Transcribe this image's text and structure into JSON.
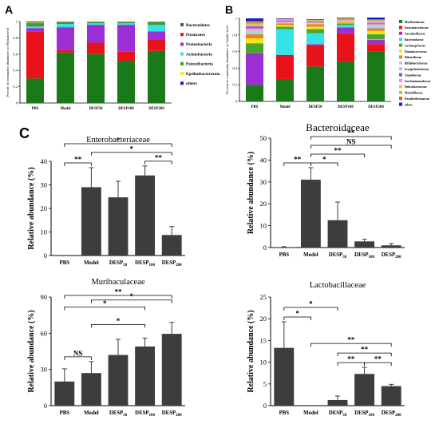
{
  "panels": {
    "a": "A",
    "b": "B",
    "c": "C"
  },
  "chart_data": [
    {
      "id": "A",
      "type": "bar",
      "stacked": true,
      "ylabel": "Percent of community abundance on Phylum level",
      "categories": [
        "PBS",
        "Model",
        "DESP50",
        "DESP100",
        "DESP200"
      ],
      "ylim": [
        0,
        1
      ],
      "yticks": [
        "0",
        "0.2",
        "0.4",
        "0.6",
        "0.8",
        "1"
      ],
      "legend_position": "right",
      "series": [
        {
          "name": "Bacteroidetes",
          "color": "#1a7a1a",
          "values": [
            0.3,
            0.62,
            0.6,
            0.52,
            0.64
          ]
        },
        {
          "name": "Firmicutes",
          "color": "#e8131a",
          "values": [
            0.58,
            0.03,
            0.14,
            0.11,
            0.14
          ]
        },
        {
          "name": "Proteobacteria",
          "color": "#9b2fd3",
          "values": [
            0.04,
            0.28,
            0.22,
            0.33,
            0.1
          ]
        },
        {
          "name": "Actinobacteria",
          "color": "#33e3e8",
          "values": [
            0.02,
            0.04,
            0.02,
            0.02,
            0.08
          ]
        },
        {
          "name": "Patescibacteria",
          "color": "#3c9e2a",
          "values": [
            0.04,
            0.02,
            0.01,
            0.01,
            0.03
          ]
        },
        {
          "name": "Epsilonbacteraeota",
          "color": "#f6e51a",
          "values": [
            0.01,
            0.005,
            0.005,
            0.005,
            0.005
          ]
        },
        {
          "name": "others",
          "color": "#1818d8",
          "values": [
            0.01,
            0.005,
            0.005,
            0.005,
            0.005
          ]
        }
      ]
    },
    {
      "id": "B",
      "type": "bar",
      "stacked": true,
      "ylabel": "Percent of community abundance on Family level",
      "categories": [
        "PBS",
        "Model",
        "DESP50",
        "DESP100",
        "DESP200"
      ],
      "ylim": [
        0,
        1
      ],
      "yticks": [
        "0",
        "0.2",
        "0.4",
        "0.6",
        "0.8",
        "1"
      ],
      "legend_position": "right",
      "series": [
        {
          "name": "Muribaculaceae",
          "color": "#1a7a1a",
          "values": [
            0.2,
            0.27,
            0.42,
            0.48,
            0.6
          ]
        },
        {
          "name": "Enterobacteriaceae",
          "color": "#e8131a",
          "values": [
            0.0,
            0.29,
            0.26,
            0.34,
            0.09
          ]
        },
        {
          "name": "Lactobacillaceae",
          "color": "#9b2fd3",
          "values": [
            0.38,
            0.0,
            0.01,
            0.07,
            0.05
          ]
        },
        {
          "name": "Bacteroidaceae",
          "color": "#33e3e8",
          "values": [
            0.0,
            0.31,
            0.13,
            0.03,
            0.01
          ]
        },
        {
          "name": "Lachnospiraceae",
          "color": "#4aa42e",
          "values": [
            0.12,
            0.03,
            0.05,
            0.02,
            0.06
          ]
        },
        {
          "name": "Ruminococcaceae",
          "color": "#f6e51a",
          "values": [
            0.06,
            0.02,
            0.03,
            0.01,
            0.04
          ]
        },
        {
          "name": "Rikenellaceae",
          "color": "#f07f1a",
          "values": [
            0.05,
            0.02,
            0.03,
            0.01,
            0.03
          ]
        },
        {
          "name": "Bifidobacteriaceae",
          "color": "#9ad8f2",
          "values": [
            0.04,
            0.01,
            0.01,
            0.01,
            0.03
          ]
        },
        {
          "name": "Erysipelotrichaceae",
          "color": "#f5a8c8",
          "values": [
            0.03,
            0.01,
            0.01,
            0.01,
            0.02
          ]
        },
        {
          "name": "Atopobiaceae",
          "color": "#7e57c2",
          "values": [
            0.02,
            0.01,
            0.01,
            0.005,
            0.01
          ]
        },
        {
          "name": "Saccharimonadaceae",
          "color": "#e58fe0",
          "values": [
            0.02,
            0.01,
            0.01,
            0.005,
            0.02
          ]
        },
        {
          "name": "Helicobacteraceae",
          "color": "#f2c23a",
          "values": [
            0.01,
            0.005,
            0.005,
            0.005,
            0.01
          ]
        },
        {
          "name": "Marinifilaceae",
          "color": "#9acd32",
          "values": [
            0.02,
            0.005,
            0.005,
            0.005,
            0.01
          ]
        },
        {
          "name": "Desulfovibrionaceae",
          "color": "#e05a1a",
          "values": [
            0.02,
            0.005,
            0.005,
            0.005,
            0.01
          ]
        },
        {
          "name": "others",
          "color": "#1818d8",
          "values": [
            0.03,
            0.005,
            0.005,
            0.005,
            0.02
          ]
        }
      ]
    },
    {
      "id": "C1",
      "type": "bar",
      "title": "Enterobacteriaceae",
      "ylabel": "Relative abundance (%)",
      "ylim": [
        0,
        40
      ],
      "yticks": [
        "0",
        "10",
        "20",
        "30",
        "40"
      ],
      "categories": [
        [
          "PBS",
          ""
        ],
        [
          "Model",
          ""
        ],
        [
          "DESP",
          "50"
        ],
        [
          "DESP",
          "100"
        ],
        [
          "DESP",
          "200"
        ]
      ],
      "values": [
        0,
        29,
        24.7,
        34,
        8.7
      ],
      "errors": [
        0,
        8.3,
        6.8,
        4,
        3.6
      ],
      "significance": [
        {
          "a": 0,
          "b": 1,
          "label": "**",
          "level": 1
        },
        {
          "a": 3,
          "b": 4,
          "label": "**",
          "level": 1
        },
        {
          "a": 1,
          "b": 4,
          "label": "*",
          "level": 2
        },
        {
          "a": 0,
          "b": 4,
          "label": "*",
          "level": 3
        }
      ]
    },
    {
      "id": "C2",
      "type": "bar",
      "title": "Bacteroidaceae",
      "ylabel": "Relative abundance (%)",
      "ylim": [
        0,
        50
      ],
      "yticks": [
        "0",
        "10",
        "20",
        "30",
        "40",
        "50"
      ],
      "categories": [
        [
          "PBS",
          ""
        ],
        [
          "Model",
          ""
        ],
        [
          "DESP",
          "50"
        ],
        [
          "DESP",
          "100"
        ],
        [
          "DESP",
          "200"
        ]
      ],
      "values": [
        0.2,
        31,
        12.5,
        2.8,
        1
      ],
      "errors": [
        0.2,
        5.5,
        8.3,
        1,
        0.8
      ],
      "significance": [
        {
          "a": 0,
          "b": 1,
          "label": "**",
          "level": 1
        },
        {
          "a": 1,
          "b": 2,
          "label": "*",
          "level": 1
        },
        {
          "a": 1,
          "b": 3,
          "label": "**",
          "level": 2
        },
        {
          "a": 1,
          "b": 4,
          "label": "NS",
          "level": 3
        },
        {
          "a": 1,
          "b": 4,
          "label": "**",
          "level": 4
        }
      ]
    },
    {
      "id": "C3",
      "type": "bar",
      "title": "Muribaculaceae",
      "ylabel": "Relative abundance (%)",
      "ylim": [
        0,
        90
      ],
      "yticks": [
        "0",
        "30",
        "60",
        "90"
      ],
      "categories": [
        [
          "PBS",
          ""
        ],
        [
          "Model",
          ""
        ],
        [
          "DESP",
          "50"
        ],
        [
          "DESP",
          "100"
        ],
        [
          "DESP",
          "200"
        ]
      ],
      "values": [
        20,
        27,
        42,
        49,
        59.5
      ],
      "errors": [
        10.5,
        9.5,
        13,
        7,
        9.5
      ],
      "significance": [
        {
          "a": 0,
          "b": 1,
          "label": "NS",
          "level": 1
        },
        {
          "a": 1,
          "b": 3,
          "label": "*",
          "level": 2
        },
        {
          "a": 1,
          "b": 4,
          "label": "*",
          "level": 3
        },
        {
          "a": 0,
          "b": 3,
          "label": "*",
          "level": 4
        },
        {
          "a": 0,
          "b": 4,
          "label": "**",
          "level": 5
        }
      ]
    },
    {
      "id": "C4",
      "type": "bar",
      "title": "Lactobacillaceae",
      "ylabel": "Relative abundance (%)",
      "ylim": [
        0,
        25
      ],
      "yticks": [
        "0",
        "5",
        "10",
        "15",
        "20",
        "25"
      ],
      "categories": [
        [
          "PBS",
          ""
        ],
        [
          "Model",
          ""
        ],
        [
          "DESP",
          "50"
        ],
        [
          "DESP",
          "100"
        ],
        [
          "DESP",
          "200"
        ]
      ],
      "values": [
        13.3,
        0,
        1.3,
        7.3,
        4.5
      ],
      "errors": [
        6,
        0,
        0.9,
        1.5,
        0.4
      ],
      "significance": [
        {
          "a": 0,
          "b": 1,
          "label": "*",
          "level": 1
        },
        {
          "a": 0,
          "b": 2,
          "label": "*",
          "level": 2
        },
        {
          "a": 2,
          "b": 3,
          "label": "**",
          "level": 1
        },
        {
          "a": 3,
          "b": 4,
          "label": "**",
          "level": 1
        },
        {
          "a": 2,
          "b": 4,
          "label": "**",
          "level": 2
        },
        {
          "a": 1,
          "b": 4,
          "label": "**",
          "level": 3
        }
      ]
    }
  ]
}
